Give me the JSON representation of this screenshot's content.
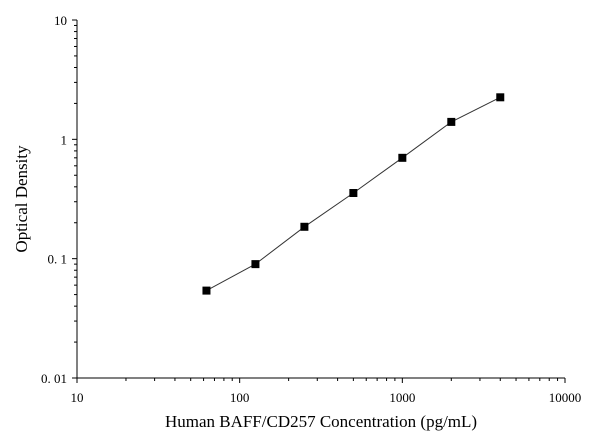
{
  "chart_data": {
    "type": "scatter",
    "xlabel": "Human BAFF/CD257 Concentration (pg/mL)",
    "ylabel": "Optical Density",
    "x_scale": "log",
    "y_scale": "log",
    "xlim": [
      10,
      10000
    ],
    "ylim": [
      0.01,
      10
    ],
    "x_ticks": [
      "10",
      "100",
      "1000",
      "10000"
    ],
    "y_ticks": [
      "0. 01",
      "0. 1",
      "1",
      "10"
    ],
    "grid": false,
    "series": [
      {
        "x": [
          62.5,
          125,
          250,
          500,
          1000,
          2000,
          4000
        ],
        "y": [
          0.054,
          0.09,
          0.185,
          0.355,
          0.7,
          1.4,
          2.25
        ],
        "marker": "square",
        "line": true,
        "color": "#000000"
      }
    ]
  }
}
